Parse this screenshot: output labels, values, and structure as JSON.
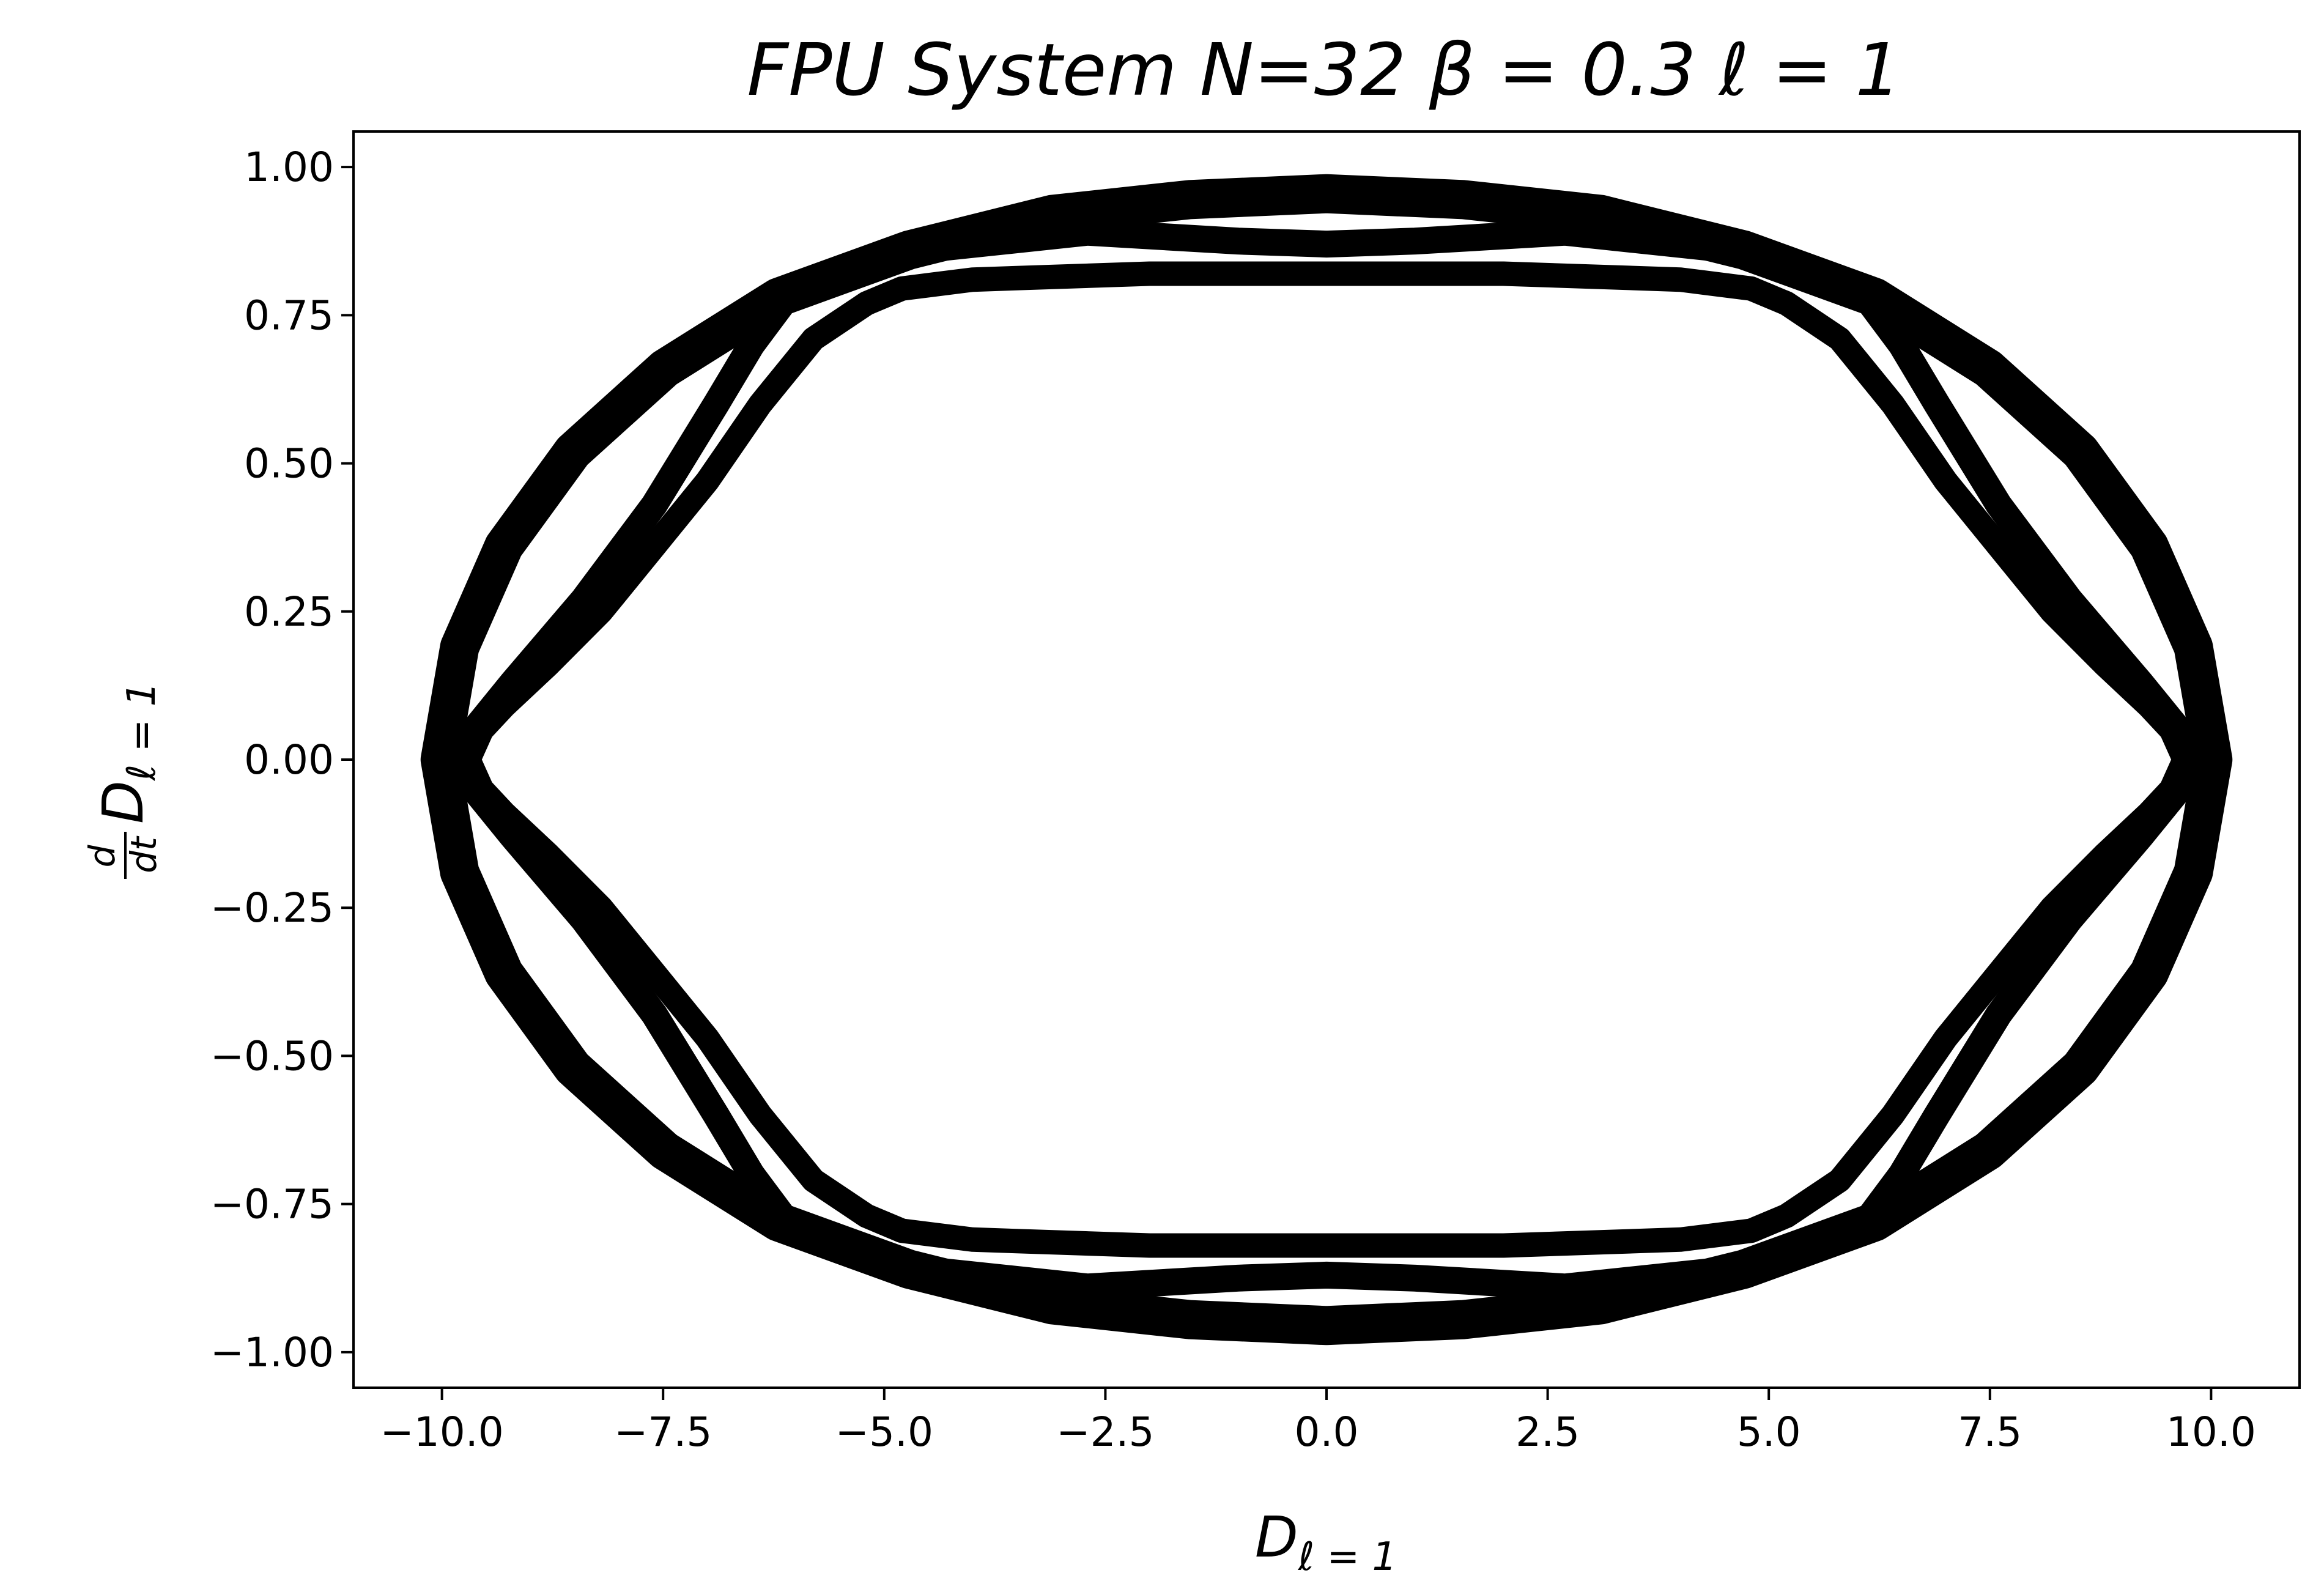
{
  "chart_data": {
    "type": "scatter",
    "title": "FPU System N=32 β = 0.3 ℓ = 1",
    "xlabel": {
      "main": "D",
      "sub": "ℓ = 1"
    },
    "ylabel": {
      "numerator": "d",
      "denominator": "dt",
      "main": "D",
      "sub": "ℓ = 1"
    },
    "xlim": [
      -11.0,
      11.0
    ],
    "ylim": [
      -1.06,
      1.06
    ],
    "xticks": [
      -10.0,
      -7.5,
      -5.0,
      -2.5,
      0.0,
      2.5,
      5.0,
      7.5,
      10.0
    ],
    "xtick_labels": [
      "−10.0",
      "−7.5",
      "−5.0",
      "−2.5",
      "0.0",
      "2.5",
      "5.0",
      "7.5",
      "10.0"
    ],
    "yticks": [
      1.0,
      0.75,
      0.5,
      0.25,
      0.0,
      -0.25,
      -0.5,
      -0.75,
      -1.0
    ],
    "ytick_labels": [
      "1.00",
      "0.75",
      "0.50",
      "0.25",
      "0.00",
      "−0.25",
      "−0.50",
      "−0.75",
      "−1.00"
    ],
    "grid": false,
    "color": "#000000",
    "series": [
      {
        "values": [
          [
            10.02,
            0.0
          ],
          [
            9.8,
            0.19
          ],
          [
            9.3,
            0.36
          ],
          [
            8.52,
            0.52
          ],
          [
            7.48,
            0.66
          ],
          [
            6.2,
            0.78
          ],
          [
            4.72,
            0.86
          ],
          [
            3.1,
            0.92
          ],
          [
            1.55,
            0.945
          ],
          [
            0.0,
            0.955
          ],
          [
            -1.55,
            0.945
          ],
          [
            -3.1,
            0.92
          ],
          [
            -4.72,
            0.86
          ],
          [
            -6.2,
            0.78
          ],
          [
            -7.48,
            0.66
          ],
          [
            -8.52,
            0.52
          ],
          [
            -9.3,
            0.36
          ],
          [
            -9.8,
            0.19
          ],
          [
            -10.02,
            0.0
          ],
          [
            -9.8,
            -0.19
          ],
          [
            -9.3,
            -0.36
          ],
          [
            -8.52,
            -0.52
          ],
          [
            -7.48,
            -0.66
          ],
          [
            -6.2,
            -0.78
          ],
          [
            -4.72,
            -0.86
          ],
          [
            -3.1,
            -0.92
          ],
          [
            -1.55,
            -0.945
          ],
          [
            0.0,
            -0.955
          ],
          [
            1.55,
            -0.945
          ],
          [
            3.1,
            -0.92
          ],
          [
            4.72,
            -0.86
          ],
          [
            6.2,
            -0.78
          ],
          [
            7.48,
            -0.66
          ],
          [
            8.52,
            -0.52
          ],
          [
            9.3,
            -0.36
          ],
          [
            9.8,
            -0.19
          ],
          [
            10.02,
            0.0
          ]
        ]
      },
      {
        "values": [
          [
            -9.7,
            0.0
          ],
          [
            -9.55,
            0.05
          ],
          [
            -9.3,
            0.09
          ],
          [
            -8.8,
            0.16
          ],
          [
            -8.2,
            0.25
          ],
          [
            -7.6,
            0.36
          ],
          [
            -7.0,
            0.47
          ],
          [
            -6.4,
            0.6
          ],
          [
            -5.8,
            0.71
          ],
          [
            -5.2,
            0.77
          ],
          [
            -4.8,
            0.795
          ],
          [
            -4.0,
            0.81
          ],
          [
            -2.0,
            0.82
          ],
          [
            0.0,
            0.82
          ],
          [
            2.0,
            0.82
          ],
          [
            4.0,
            0.81
          ],
          [
            4.8,
            0.795
          ],
          [
            5.2,
            0.77
          ],
          [
            5.8,
            0.71
          ],
          [
            6.4,
            0.6
          ],
          [
            7.0,
            0.47
          ],
          [
            7.6,
            0.36
          ],
          [
            8.2,
            0.25
          ],
          [
            8.8,
            0.16
          ],
          [
            9.3,
            0.09
          ],
          [
            9.55,
            0.05
          ],
          [
            9.7,
            0.0
          ],
          [
            9.55,
            -0.05
          ],
          [
            9.3,
            -0.09
          ],
          [
            8.8,
            -0.16
          ],
          [
            8.2,
            -0.25
          ],
          [
            7.6,
            -0.36
          ],
          [
            7.0,
            -0.47
          ],
          [
            6.4,
            -0.6
          ],
          [
            5.8,
            -0.71
          ],
          [
            5.2,
            -0.77
          ],
          [
            4.8,
            -0.795
          ],
          [
            4.0,
            -0.81
          ],
          [
            2.0,
            -0.82
          ],
          [
            0.0,
            -0.82
          ],
          [
            -2.0,
            -0.82
          ],
          [
            -4.0,
            -0.81
          ],
          [
            -4.8,
            -0.795
          ],
          [
            -5.2,
            -0.77
          ],
          [
            -5.8,
            -0.71
          ],
          [
            -6.4,
            -0.6
          ],
          [
            -7.0,
            -0.47
          ],
          [
            -7.6,
            -0.36
          ],
          [
            -8.2,
            -0.25
          ],
          [
            -8.8,
            -0.16
          ],
          [
            -9.3,
            -0.09
          ],
          [
            -9.55,
            -0.05
          ],
          [
            -9.7,
            0.0
          ]
        ]
      },
      {
        "values": [
          [
            -9.8,
            0.02
          ],
          [
            -9.2,
            0.13
          ],
          [
            -8.4,
            0.27
          ],
          [
            -7.6,
            0.43
          ],
          [
            -6.9,
            0.6
          ],
          [
            -6.5,
            0.7
          ],
          [
            -6.0,
            0.8
          ],
          [
            -4.6,
            0.86
          ],
          [
            -2.7,
            0.89
          ],
          [
            -1.0,
            0.875
          ],
          [
            0.0,
            0.87
          ],
          [
            1.0,
            0.875
          ],
          [
            2.7,
            0.89
          ],
          [
            4.6,
            0.86
          ],
          [
            6.0,
            0.8
          ],
          [
            6.5,
            0.7
          ],
          [
            6.9,
            0.6
          ],
          [
            7.6,
            0.43
          ],
          [
            8.4,
            0.27
          ],
          [
            9.2,
            0.13
          ],
          [
            9.8,
            0.02
          ],
          [
            9.8,
            -0.02
          ],
          [
            9.2,
            -0.13
          ],
          [
            8.4,
            -0.27
          ],
          [
            7.6,
            -0.43
          ],
          [
            6.9,
            -0.6
          ],
          [
            6.5,
            -0.7
          ],
          [
            6.0,
            -0.8
          ],
          [
            4.6,
            -0.86
          ],
          [
            2.7,
            -0.89
          ],
          [
            1.0,
            -0.875
          ],
          [
            0.0,
            -0.87
          ],
          [
            -1.0,
            -0.875
          ],
          [
            -2.7,
            -0.89
          ],
          [
            -4.6,
            -0.86
          ],
          [
            -6.0,
            -0.8
          ],
          [
            -6.5,
            -0.7
          ],
          [
            -6.9,
            -0.6
          ],
          [
            -7.6,
            -0.43
          ],
          [
            -8.4,
            -0.27
          ],
          [
            -9.2,
            -0.13
          ],
          [
            -9.8,
            -0.02
          ]
        ]
      }
    ]
  }
}
